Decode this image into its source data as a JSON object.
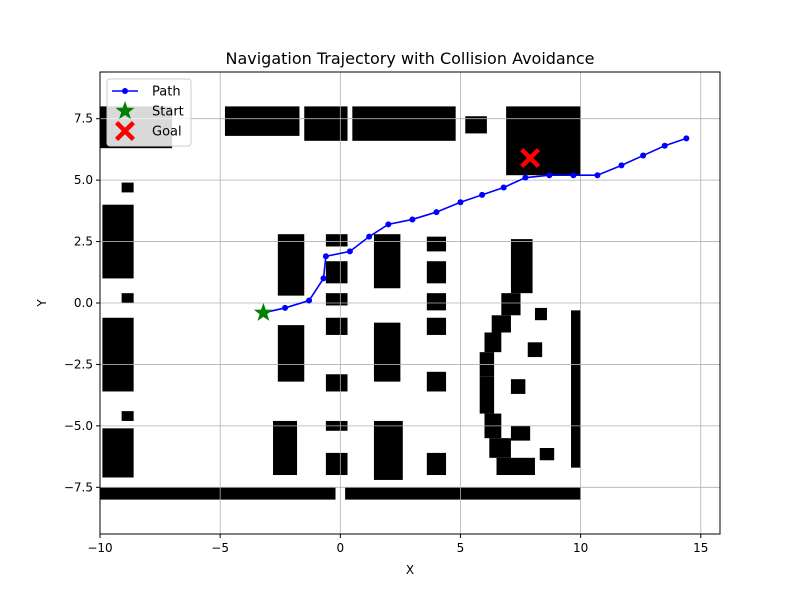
{
  "chart_data": {
    "type": "line",
    "title": "Navigation Trajectory with Collision Avoidance",
    "xlabel": "X",
    "ylabel": "Y",
    "xlim": [
      -10,
      15.8
    ],
    "ylim": [
      -9.4,
      9.4
    ],
    "xticks": [
      -10,
      -5,
      0,
      5,
      10,
      15
    ],
    "xtick_labels": [
      "−10",
      "−5",
      "0",
      "5",
      "10",
      "15"
    ],
    "yticks": [
      -7.5,
      -5.0,
      -2.5,
      0.0,
      2.5,
      5.0,
      7.5
    ],
    "ytick_labels": [
      "−7.5",
      "−5.0",
      "−2.5",
      "0.0",
      "2.5",
      "5.0",
      "7.5"
    ],
    "grid": true,
    "legend": {
      "location": "upper-left",
      "entries": [
        {
          "label": "Path",
          "marker": "line-dot",
          "color": "#0000ff"
        },
        {
          "label": "Start",
          "marker": "star",
          "color": "#008000"
        },
        {
          "label": "Goal",
          "marker": "x",
          "color": "#ff0000"
        }
      ]
    },
    "series": [
      {
        "name": "Path",
        "color": "#0000ff",
        "x": [
          -3.2,
          -2.3,
          -1.3,
          -0.7,
          -0.6,
          0.4,
          1.2,
          2.0,
          3.0,
          4.0,
          5.0,
          5.9,
          6.8,
          7.7,
          8.7,
          9.7,
          10.7,
          11.7,
          12.6,
          13.5,
          14.4
        ],
        "y": [
          -0.4,
          -0.2,
          0.1,
          1.0,
          1.9,
          2.1,
          2.7,
          3.2,
          3.4,
          3.7,
          4.1,
          4.4,
          4.7,
          5.1,
          5.2,
          5.2,
          5.2,
          5.6,
          6.0,
          6.4,
          6.7
        ]
      }
    ],
    "start": {
      "name": "Start",
      "x": -3.2,
      "y": -0.4,
      "color": "#008000"
    },
    "goal": {
      "name": "Goal",
      "x": 7.9,
      "y": 5.9,
      "color": "#ff0000"
    },
    "obstacle_map": {
      "extent_x": [
        -10,
        10
      ],
      "extent_y": [
        -8,
        8
      ],
      "color": "#000000",
      "cells": [
        {
          "x0": -10,
          "x1": -0.2,
          "y0": -8.0,
          "y1": -7.5
        },
        {
          "x0": 0.2,
          "x1": 10,
          "y0": -8.0,
          "y1": -7.5
        },
        {
          "x0": -10,
          "x1": -7.0,
          "y0": 6.3,
          "y1": 8.0
        },
        {
          "x0": -4.8,
          "x1": -1.7,
          "y0": 6.8,
          "y1": 8.0
        },
        {
          "x0": -1.5,
          "x1": 0.3,
          "y0": 6.6,
          "y1": 8.0
        },
        {
          "x0": 0.5,
          "x1": 4.8,
          "y0": 6.6,
          "y1": 8.0
        },
        {
          "x0": 5.2,
          "x1": 6.1,
          "y0": 6.9,
          "y1": 7.6
        },
        {
          "x0": 6.9,
          "x1": 10,
          "y0": 5.2,
          "y1": 8.0
        },
        {
          "x0": -9.9,
          "x1": -8.6,
          "y0": 1.0,
          "y1": 4.0
        },
        {
          "x0": -9.1,
          "x1": -8.6,
          "y0": 0.0,
          "y1": 0.4
        },
        {
          "x0": -9.9,
          "x1": -8.6,
          "y0": -3.6,
          "y1": -0.6
        },
        {
          "x0": -9.1,
          "x1": -8.6,
          "y0": -4.8,
          "y1": -4.4
        },
        {
          "x0": -9.9,
          "x1": -8.6,
          "y0": -7.1,
          "y1": -5.1
        },
        {
          "x0": -9.1,
          "x1": -8.6,
          "y0": 4.5,
          "y1": 4.9
        },
        {
          "x0": -2.6,
          "x1": -1.5,
          "y0": 0.3,
          "y1": 2.8
        },
        {
          "x0": -2.6,
          "x1": -1.5,
          "y0": -3.2,
          "y1": -0.9
        },
        {
          "x0": -2.8,
          "x1": -1.8,
          "y0": -7.0,
          "y1": -4.8
        },
        {
          "x0": -0.6,
          "x1": 0.3,
          "y0": 2.3,
          "y1": 2.8
        },
        {
          "x0": -0.6,
          "x1": 0.3,
          "y0": 0.8,
          "y1": 1.7
        },
        {
          "x0": -0.6,
          "x1": 0.3,
          "y0": -0.1,
          "y1": 0.4
        },
        {
          "x0": -0.6,
          "x1": 0.3,
          "y0": -1.3,
          "y1": -0.6
        },
        {
          "x0": -0.6,
          "x1": 0.3,
          "y0": -3.6,
          "y1": -2.9
        },
        {
          "x0": -0.6,
          "x1": 0.3,
          "y0": -5.2,
          "y1": -4.8
        },
        {
          "x0": -0.6,
          "x1": 0.3,
          "y0": -7.0,
          "y1": -6.1
        },
        {
          "x0": 1.4,
          "x1": 2.5,
          "y0": 0.6,
          "y1": 2.8
        },
        {
          "x0": 1.4,
          "x1": 2.5,
          "y0": -3.2,
          "y1": -0.8
        },
        {
          "x0": 1.4,
          "x1": 2.6,
          "y0": -7.2,
          "y1": -4.8
        },
        {
          "x0": 3.6,
          "x1": 4.4,
          "y0": 2.1,
          "y1": 2.7
        },
        {
          "x0": 3.6,
          "x1": 4.4,
          "y0": 0.8,
          "y1": 1.7
        },
        {
          "x0": 3.6,
          "x1": 4.4,
          "y0": -0.3,
          "y1": 0.4
        },
        {
          "x0": 3.6,
          "x1": 4.4,
          "y0": -1.3,
          "y1": -0.6
        },
        {
          "x0": 3.6,
          "x1": 4.4,
          "y0": -3.6,
          "y1": -2.8
        },
        {
          "x0": 3.6,
          "x1": 4.4,
          "y0": -7.0,
          "y1": -6.1
        },
        {
          "x0": 7.1,
          "x1": 8.0,
          "y0": 0.4,
          "y1": 2.6
        },
        {
          "x0": 6.7,
          "x1": 7.5,
          "y0": -0.5,
          "y1": 0.4
        },
        {
          "x0": 6.3,
          "x1": 7.1,
          "y0": -1.2,
          "y1": -0.5
        },
        {
          "x0": 6.0,
          "x1": 6.7,
          "y0": -2.0,
          "y1": -1.2
        },
        {
          "x0": 5.8,
          "x1": 6.4,
          "y0": -3.0,
          "y1": -2.0
        },
        {
          "x0": 5.8,
          "x1": 6.4,
          "y0": -4.5,
          "y1": -3.0
        },
        {
          "x0": 6.0,
          "x1": 6.7,
          "y0": -5.5,
          "y1": -4.5
        },
        {
          "x0": 6.2,
          "x1": 7.1,
          "y0": -6.3,
          "y1": -5.5
        },
        {
          "x0": 6.5,
          "x1": 8.1,
          "y0": -7.0,
          "y1": -6.3
        },
        {
          "x0": 8.1,
          "x1": 8.6,
          "y0": -0.7,
          "y1": -0.2
        },
        {
          "x0": 7.8,
          "x1": 8.4,
          "y0": -2.2,
          "y1": -1.6
        },
        {
          "x0": 7.1,
          "x1": 7.7,
          "y0": -3.7,
          "y1": -3.1
        },
        {
          "x0": 7.1,
          "x1": 7.9,
          "y0": -5.6,
          "y1": -5.0
        },
        {
          "x0": 8.3,
          "x1": 8.9,
          "y0": -6.4,
          "y1": -5.9
        },
        {
          "x0": 9.6,
          "x1": 10.0,
          "y0": -6.7,
          "y1": -0.3
        }
      ]
    }
  }
}
